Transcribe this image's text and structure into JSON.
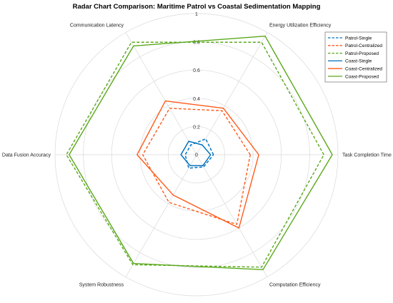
{
  "colors": {
    "single": "#0072bd",
    "centralized": "#ff5a1a",
    "proposed": "#5aa91c",
    "grid": "#d9d9d9"
  },
  "chart_data": {
    "type": "radar",
    "title": "Radar Chart Comparison: Maritime Patrol vs Coastal Sedimentation Mapping",
    "axes": [
      "Task Completion Time",
      "Energy Utilization Efficiency",
      "Communication Latency",
      "Data Fusion Accuracy",
      "System Robustness",
      "Computation Efficiency"
    ],
    "rlim": [
      0,
      1
    ],
    "r_ticks": [
      0,
      0.2,
      0.4,
      0.6,
      0.8,
      1
    ],
    "r_tick_labels": [
      "0",
      "0.2",
      "0.4",
      "0.6",
      "0.8",
      "1"
    ],
    "grid": true,
    "legend_position": "top-right",
    "series": [
      {
        "name": "Patrol-Single",
        "style": "dashed",
        "color_key": "single",
        "values": [
          0.12,
          0.13,
          0.08,
          0.08,
          0.11,
          0.1
        ]
      },
      {
        "name": "Patrol-Centralized",
        "style": "dashed",
        "color_key": "centralized",
        "values": [
          0.38,
          0.36,
          0.38,
          0.38,
          0.39,
          0.57
        ]
      },
      {
        "name": "Patrol-Proposed",
        "style": "dashed",
        "color_key": "proposed",
        "values": [
          0.9,
          0.92,
          0.92,
          0.92,
          0.9,
          0.92
        ]
      },
      {
        "name": "Coast-Single",
        "style": "solid",
        "color_key": "single",
        "values": [
          0.1,
          0.08,
          0.11,
          0.11,
          0.09,
          0.09
        ]
      },
      {
        "name": "Coast-Centralized",
        "style": "solid",
        "color_key": "centralized",
        "values": [
          0.44,
          0.38,
          0.44,
          0.42,
          0.33,
          0.6
        ]
      },
      {
        "name": "Coast-Proposed",
        "style": "solid",
        "color_key": "proposed",
        "values": [
          0.96,
          0.97,
          0.89,
          0.9,
          0.89,
          0.94
        ]
      }
    ]
  }
}
